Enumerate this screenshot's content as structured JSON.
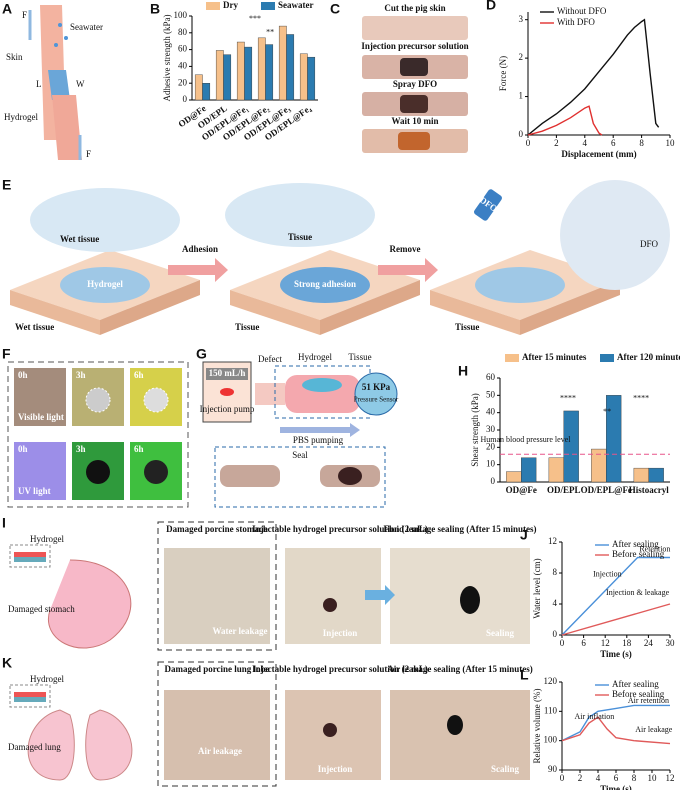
{
  "chart_data": [
    {
      "type": "bar",
      "panel": "B",
      "ylabel": "Adhesive strength (kPa)",
      "categories": [
        "OD@Fe",
        "OD/EPL",
        "OD/EPL@Fe₁",
        "OD/EPL@Fe₂",
        "OD/EPL@Fe₃",
        "OD/EPL@Fe₄"
      ],
      "series": [
        {
          "name": "Dry",
          "color": "#f6c08a",
          "values": [
            30,
            59,
            69,
            74,
            88,
            55
          ]
        },
        {
          "name": "Seawater",
          "color": "#2b7bb0",
          "values": [
            20,
            54,
            63,
            66,
            78,
            51
          ]
        }
      ],
      "ylim": [
        0,
        100
      ],
      "yticks": [
        0,
        20,
        40,
        60,
        80,
        100
      ],
      "annotations": [
        "***",
        "**"
      ]
    },
    {
      "type": "line",
      "panel": "D",
      "xlabel": "Displacement (mm)",
      "ylabel": "Force (N)",
      "series": [
        {
          "name": "Without DFO",
          "color": "#111111",
          "x": [
            0,
            1,
            2,
            3,
            4,
            5,
            6,
            7,
            7.5,
            8,
            8.2,
            8.6,
            9,
            9.2
          ],
          "values": [
            0,
            0.3,
            0.55,
            0.85,
            1.2,
            1.65,
            2.1,
            2.6,
            2.8,
            2.95,
            3.0,
            1.6,
            0.3,
            0.2
          ]
        },
        {
          "name": "With DFO",
          "color": "#e0302f",
          "x": [
            0,
            1,
            2,
            3,
            4,
            4.3,
            4.6,
            5,
            5.2
          ],
          "values": [
            0,
            0.1,
            0.25,
            0.45,
            0.7,
            0.75,
            0.3,
            0.05,
            0
          ]
        }
      ],
      "xlim": [
        0,
        10
      ],
      "xticks": [
        0,
        2,
        4,
        6,
        8,
        10
      ],
      "ylim": [
        0,
        3.2
      ],
      "yticks": [
        0,
        1,
        2,
        3
      ]
    },
    {
      "type": "bar",
      "panel": "H",
      "ylabel": "Shear strength (kPa)",
      "categories": [
        "OD@Fe",
        "OD/EPL",
        "OD/EPL@Fe",
        "Histoacryl"
      ],
      "series": [
        {
          "name": "After 15 minutes",
          "color": "#f6c08a",
          "values": [
            6,
            14,
            19,
            8
          ]
        },
        {
          "name": "After 120 minutes",
          "color": "#2b7bb0",
          "values": [
            14,
            41,
            50,
            8
          ]
        }
      ],
      "ylim": [
        0,
        60
      ],
      "yticks": [
        0,
        10,
        20,
        30,
        40,
        50,
        60
      ],
      "reference_line": 16,
      "annotations": [
        "****",
        "**",
        "****",
        "Human blood pressure level"
      ]
    },
    {
      "type": "line",
      "panel": "J",
      "xlabel": "Time (s)",
      "ylabel": "Water level (cm)",
      "series": [
        {
          "name": "After sealing",
          "color": "#4a90d9",
          "x": [
            0,
            21,
            30
          ],
          "values": [
            0,
            10,
            10
          ]
        },
        {
          "name": "Before sealing",
          "color": "#e05a5a",
          "x": [
            0,
            30
          ],
          "values": [
            0,
            4
          ]
        }
      ],
      "xlim": [
        0,
        30
      ],
      "xticks": [
        0,
        6,
        12,
        18,
        24,
        30
      ],
      "ylim": [
        0,
        12
      ],
      "yticks": [
        0,
        4,
        8,
        12
      ],
      "annotations": [
        "Injection",
        "Retention",
        "Injection & leakage"
      ]
    },
    {
      "type": "line",
      "panel": "L",
      "xlabel": "Time (s)",
      "ylabel": "Relative volume (%)",
      "series": [
        {
          "name": "After sealing",
          "color": "#4a90d9",
          "x": [
            0,
            2,
            3,
            4,
            6,
            8,
            12
          ],
          "values": [
            100,
            103,
            108,
            110,
            111,
            112,
            112
          ]
        },
        {
          "name": "Before sealing",
          "color": "#e05a5a",
          "x": [
            0,
            2,
            3,
            4,
            5,
            6,
            8,
            12
          ],
          "values": [
            100,
            102,
            106,
            108,
            104,
            101,
            100,
            99
          ]
        }
      ],
      "xlim": [
        0,
        12
      ],
      "xticks": [
        0,
        2,
        4,
        6,
        8,
        10,
        12
      ],
      "ylim": [
        90,
        120
      ],
      "yticks": [
        90,
        100,
        110,
        120
      ],
      "annotations": [
        "Air inflation",
        "Air retention",
        "Air leakage"
      ]
    }
  ],
  "panel_a": {
    "panel": "A",
    "labels": [
      "F",
      "Seawater",
      "Skin",
      "L",
      "W",
      "Hydrogel",
      "F"
    ]
  },
  "panel_c": {
    "panel": "C",
    "steps": [
      "Cut the pig skin",
      "Injection precursor solution",
      "Spray DFO",
      "Wait 10 min"
    ]
  },
  "panel_e": {
    "panel": "E",
    "labels": [
      "Wet tissue",
      "Hydrogel",
      "Wet tissue",
      "Adhesion",
      "Tissue",
      "Strong adhesion",
      "Tissue",
      "Remove",
      "DFO",
      "Tissue",
      "DFO"
    ]
  },
  "panel_f": {
    "panel": "F",
    "times": [
      "0h",
      "3h",
      "6h",
      "0h",
      "3h",
      "6h"
    ],
    "lights": [
      "Visible light",
      "UV light"
    ]
  },
  "panel_g": {
    "panel": "G",
    "labels": [
      "150 mL/h",
      "Injection pump",
      "Defect",
      "Hydrogel",
      "Tissue",
      "51 KPa",
      "Pressure Sensor",
      "PBS pumping",
      "Seal"
    ]
  },
  "panel_i": {
    "panel": "I",
    "labels": [
      "Hydrogel",
      "Damaged stomach",
      "Damaged porcine stomach",
      "Water leakage",
      "Injectable hydrogel precursor solution (2 mL)",
      "Injection",
      "Fluid leakage sealing (After 15 minutes)",
      "Sealing"
    ]
  },
  "panel_k": {
    "panel": "K",
    "labels": [
      "Hydrogel",
      "Damaged lung",
      "Damaged porcine lung lobe",
      "Air leakage",
      "Injectable hydrogel precursor solution (2 mL)",
      "Injection",
      "Air leakage sealing (After 15 minutes)",
      "Scaling"
    ]
  }
}
